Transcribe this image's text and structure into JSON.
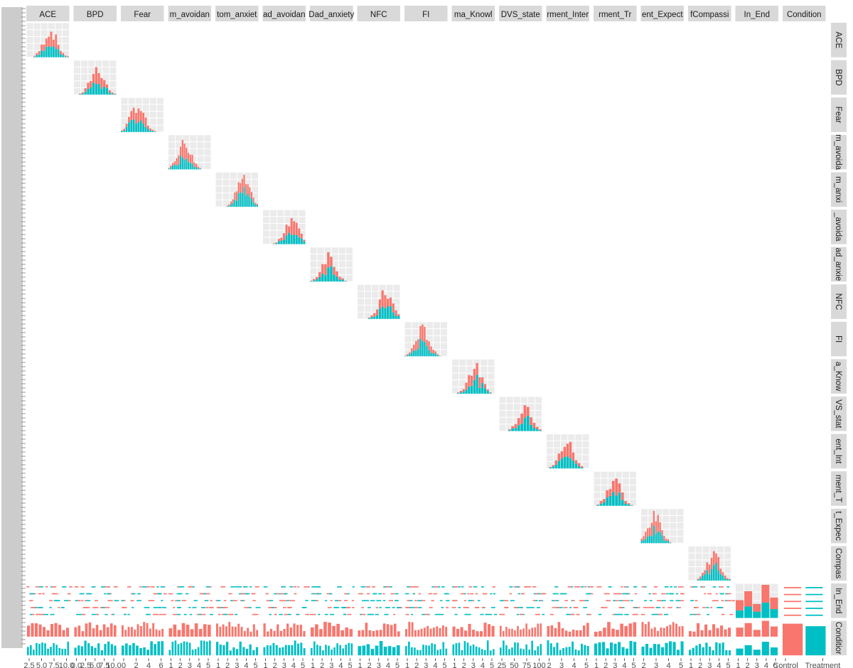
{
  "chart_data": {
    "type": "scatterplot-matrix",
    "variables": [
      "ACE",
      "BPD",
      "Fear",
      "m_avoidan",
      "tom_anxiet",
      "ad_avoidan",
      "Dad_anxiety",
      "NFC",
      "FI",
      "ma_Knowl",
      "DVS_state",
      "rment_Inter",
      "rment_Tr",
      "ent_Expect",
      "fCompassi",
      "In_End",
      "Condition"
    ],
    "row_strip_labels": [
      "ACE",
      "BPD",
      "Fear",
      "m_avoida",
      "m_anxi",
      "_avoida",
      "ad_anxie",
      "NFC",
      "FI",
      "a_Know",
      "VS_stat",
      "ent_Int",
      "ment_T",
      "t_Expec",
      "Compas",
      "In_End",
      "Conditior"
    ],
    "x_tick_labels": [
      [
        "2.5",
        "5.0",
        "7.5",
        "10.0"
      ],
      [
        "0.0",
        "2.5",
        "5.0",
        "7.5",
        "10.0"
      ],
      [
        "0",
        "2",
        "4",
        "6"
      ],
      [
        "1",
        "2",
        "3",
        "4",
        "5"
      ],
      [
        "1",
        "2",
        "3",
        "4",
        "5"
      ],
      [
        "1",
        "2",
        "3",
        "4",
        "5"
      ],
      [
        "1",
        "2",
        "3",
        "4",
        "5"
      ],
      [
        "1",
        "2",
        "3",
        "4",
        "5"
      ],
      [
        "1",
        "2",
        "3",
        "4",
        "5"
      ],
      [
        "1",
        "2",
        "3",
        "4",
        "5"
      ],
      [
        "25",
        "50",
        "75",
        "100"
      ],
      [
        "2",
        "3",
        "4",
        "5"
      ],
      [
        "1",
        "2",
        "3",
        "4",
        "5"
      ],
      [
        "2",
        "3",
        "4",
        "5"
      ],
      [
        "1",
        "2",
        "3",
        "4",
        "5"
      ],
      [
        "1",
        "2",
        "3",
        "4",
        "5"
      ],
      [
        "Control",
        "Treatment"
      ]
    ],
    "groups": [
      "Control",
      "Treatment"
    ],
    "colors": {
      "Control": "#F8766D",
      "Treatment": "#00BFC4",
      "panel_bg": "#EBEBEB",
      "strip_bg": "#D9D9D9",
      "grid": "#FFFFFF"
    },
    "condition_counts": {
      "Control": 100,
      "Treatment": 92
    },
    "in_end_histogram": {
      "x": [
        1,
        2,
        3,
        4,
        5
      ],
      "Control": [
        8,
        12,
        6,
        14,
        9
      ],
      "Treatment": [
        6,
        9,
        5,
        12,
        7
      ]
    },
    "grid": "on",
    "legend": "none"
  }
}
